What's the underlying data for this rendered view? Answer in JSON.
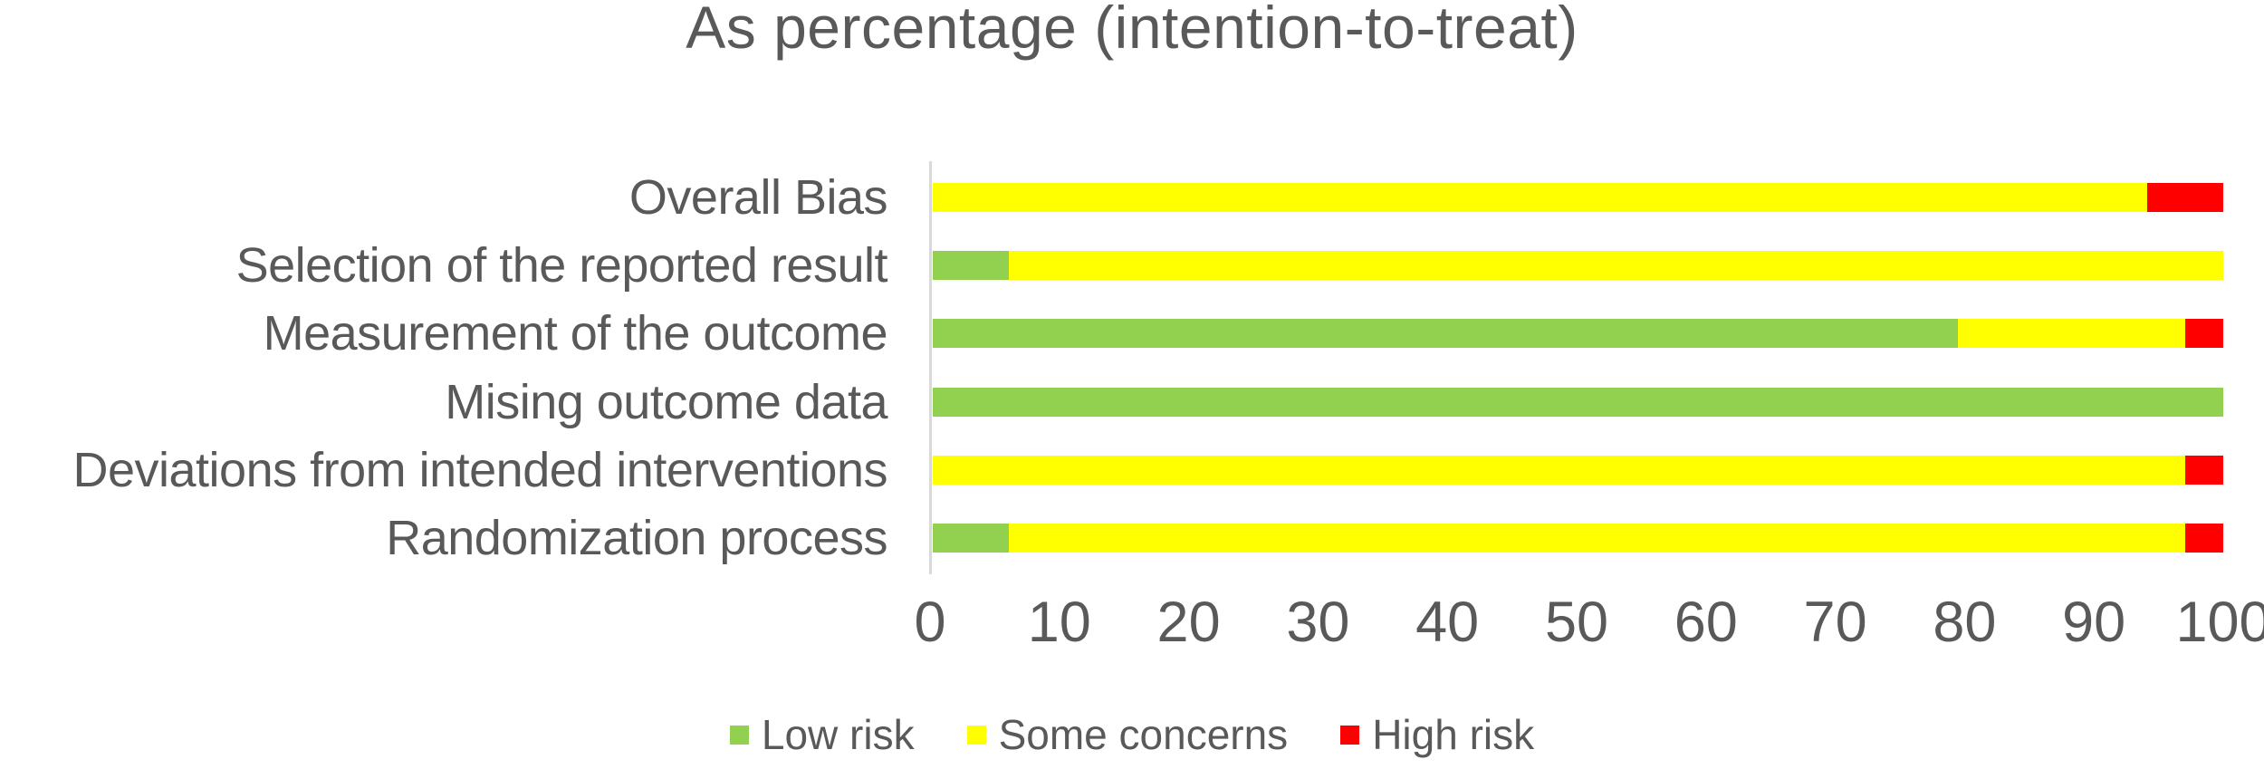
{
  "title": "As percentage (intention-to-treat)",
  "colors": {
    "low_risk": "#92D050",
    "some_concerns": "#FFFF00",
    "high_risk": "#FF0000",
    "text": "#595959",
    "axis_line": "#D9D9D9"
  },
  "chart_data": {
    "type": "bar",
    "orientation": "horizontal",
    "stacked": true,
    "title": "As percentage (intention-to-treat)",
    "categories_top_to_bottom": [
      "Overall Bias",
      "Selection of the reported result",
      "Measurement of the outcome",
      "Mising outcome data",
      "Deviations from intended interventions",
      "Randomization process"
    ],
    "series": [
      {
        "name": "Low risk",
        "color": "#92D050",
        "values": [
          0,
          5.88,
          79.41,
          100,
          0,
          5.88
        ]
      },
      {
        "name": "Some concerns",
        "color": "#FFFF00",
        "values": [
          94.12,
          94.12,
          17.65,
          0,
          97.06,
          91.18
        ]
      },
      {
        "name": "High risk",
        "color": "#FF0000",
        "values": [
          5.88,
          0,
          2.94,
          0,
          2.94,
          2.94
        ]
      }
    ],
    "xlabel": "",
    "ylabel": "",
    "xlim": [
      0,
      100
    ],
    "x_ticks": [
      0,
      10,
      20,
      30,
      40,
      50,
      60,
      70,
      80,
      90,
      100
    ],
    "grid": false,
    "legend_position": "bottom"
  },
  "rows": [
    {
      "label": "Overall Bias",
      "low": 0,
      "some": 94.12,
      "high": 5.88
    },
    {
      "label": "Selection of the reported result",
      "low": 5.88,
      "some": 94.12,
      "high": 0
    },
    {
      "label": "Measurement of the outcome",
      "low": 79.41,
      "some": 17.65,
      "high": 2.94
    },
    {
      "label": "Mising outcome data",
      "low": 100,
      "some": 0,
      "high": 0
    },
    {
      "label": "Deviations from intended interventions",
      "low": 0,
      "some": 97.06,
      "high": 2.94
    },
    {
      "label": "Randomization process",
      "low": 5.88,
      "some": 91.18,
      "high": 2.94
    }
  ],
  "legend": [
    {
      "label": "Low risk",
      "color_key": "low_risk"
    },
    {
      "label": "Some concerns",
      "color_key": "some_concerns"
    },
    {
      "label": "High risk",
      "color_key": "high_risk"
    }
  ]
}
